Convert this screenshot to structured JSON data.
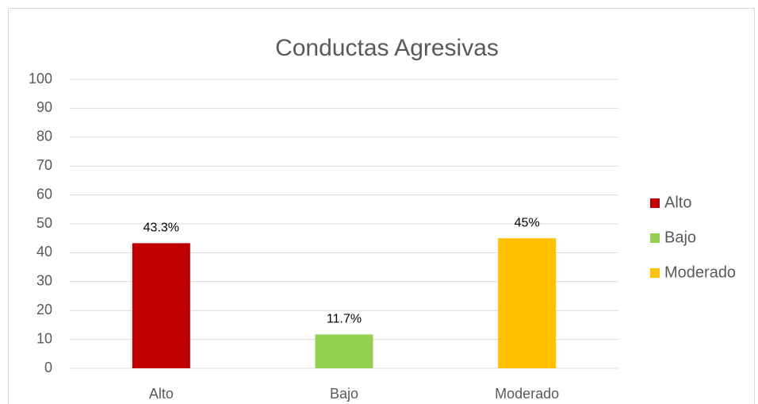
{
  "chart_data": {
    "type": "bar",
    "title": "Conductas Agresivas",
    "categories": [
      "Alto",
      "Bajo",
      "Moderado"
    ],
    "values": [
      43.3,
      11.7,
      45
    ],
    "value_labels": [
      "43.3%",
      "11.7%",
      "45%"
    ],
    "colors": [
      "#c00000",
      "#92d050",
      "#ffc000"
    ],
    "ylim": [
      0,
      100
    ],
    "yticks": [
      0,
      10,
      20,
      30,
      40,
      50,
      60,
      70,
      80,
      90,
      100
    ],
    "grid": true,
    "legend": "right"
  }
}
